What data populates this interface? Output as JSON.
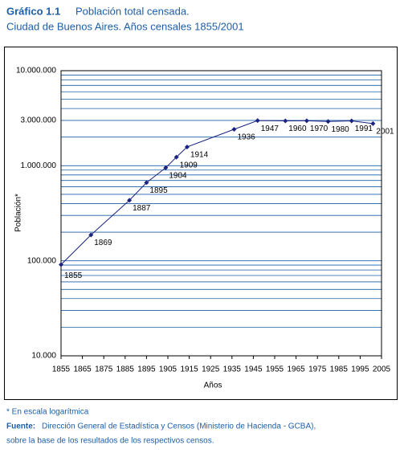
{
  "chart_data": {
    "type": "line",
    "title_label": "Gráfico 1.1",
    "title": "Población total censada.",
    "subtitle": "Ciudad de Buenos Aires. Años censales 1855/2001",
    "x_label": "Años",
    "y_label": "Población*",
    "x": [
      1855,
      1869,
      1887,
      1895,
      1904,
      1909,
      1914,
      1936,
      1947,
      1960,
      1970,
      1980,
      1991,
      2001
    ],
    "series": [
      {
        "name": "Población",
        "color": "#1a237e",
        "values": [
          91000,
          187000,
          433000,
          664000,
          951000,
          1232000,
          1576000,
          2415000,
          2983000,
          2967000,
          2972000,
          2923000,
          2965000,
          2776000
        ]
      }
    ],
    "xlim": [
      1855,
      2005
    ],
    "xticks": [
      1855,
      1865,
      1875,
      1885,
      1895,
      1905,
      1915,
      1925,
      1935,
      1945,
      1955,
      1965,
      1975,
      1985,
      1995,
      2005
    ],
    "ylim": [
      10000,
      10000000
    ],
    "log_y": true,
    "yticks": [
      {
        "value": 10000,
        "label": "10.000"
      },
      {
        "value": 100000,
        "label": "100.000"
      },
      {
        "value": 1000000,
        "label": "1.000.000"
      },
      {
        "value": 3000000,
        "label": "3.000.000"
      },
      {
        "value": 10000000,
        "label": "10.000.000"
      }
    ],
    "grid": true
  },
  "notes": {
    "footnote": "* En escala logarítmica",
    "source_label": "Fuente:",
    "source": "Dirección  General de Estadística y Censos (Ministerio de Hacienda - GCBA),",
    "source_2": "sobre la base de los resultados de los respectivos censos."
  }
}
